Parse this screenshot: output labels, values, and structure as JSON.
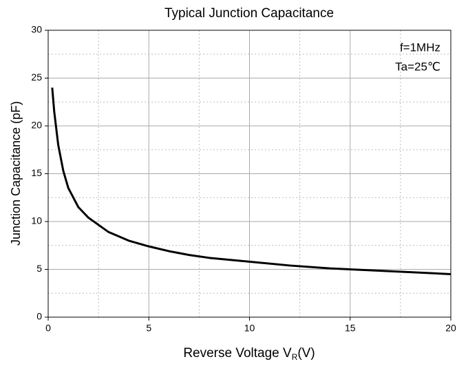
{
  "chart_data": {
    "type": "line",
    "title": "Typical  Junction  Capacitance",
    "x_label": "Reverse Voltage V",
    "x_label_sub": "R",
    "x_label_suffix": "(V)",
    "y_label": "Junction Capacitance  (pF)",
    "annotations": [
      "f=1MHz",
      "Ta=25℃"
    ],
    "x": [
      0.2,
      0.3,
      0.5,
      0.75,
      1,
      1.5,
      2,
      3,
      4,
      5,
      6,
      7,
      8,
      10,
      12,
      14,
      16,
      18,
      20
    ],
    "values": [
      24,
      21.5,
      18,
      15.3,
      13.5,
      11.5,
      10.4,
      8.9,
      8.0,
      7.4,
      6.9,
      6.5,
      6.2,
      5.8,
      5.4,
      5.1,
      4.9,
      4.7,
      4.5
    ],
    "color": "#000000",
    "xlim": [
      0,
      20
    ],
    "xticks": [
      0,
      5,
      10,
      15,
      20
    ],
    "ylim": [
      0,
      30
    ],
    "yticks": [
      0,
      5,
      10,
      15,
      20,
      25,
      30
    ],
    "grid": true,
    "minor_grid": true
  }
}
